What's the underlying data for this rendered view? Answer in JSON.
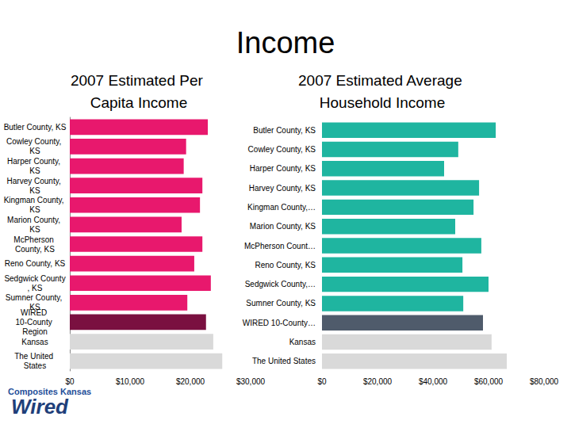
{
  "title": "Income",
  "logo": {
    "name": "Composites Kansas",
    "mark": "Wired"
  },
  "chart_data": [
    {
      "type": "bar",
      "orientation": "horizontal",
      "grid": false,
      "data_labels": false,
      "title": "2007 Estimated Per Capita Income",
      "categories": [
        "Butler County, KS",
        "Cowley County, KS",
        "Harper County, KS",
        "Harvey County, KS",
        "Kingman County, KS",
        "Marion County, KS",
        "McPherson County, KS",
        "Reno County, KS",
        "Sedgwick County, KS",
        "Sumner County, KS",
        "WIRED 10-County Region",
        "Kansas",
        "The United States"
      ],
      "values": [
        22900,
        19300,
        18900,
        22000,
        21600,
        18550,
        22000,
        20650,
        23400,
        19500,
        22600,
        23800,
        25300
      ],
      "colors": [
        "#e8186d",
        "#e8186d",
        "#e8186d",
        "#e8186d",
        "#e8186d",
        "#e8186d",
        "#e8186d",
        "#e8186d",
        "#e8186d",
        "#e8186d",
        "#7a1040",
        "#d9d9d9",
        "#d9d9d9"
      ],
      "xlim": [
        0,
        30000
      ],
      "xticks": [
        {
          "value": 0,
          "label": "$0"
        },
        {
          "value": 10000,
          "label": "$10,000"
        },
        {
          "value": 20000,
          "label": "$20,000"
        },
        {
          "value": 30000,
          "label": "$30,000"
        }
      ]
    },
    {
      "type": "bar",
      "orientation": "horizontal",
      "grid": false,
      "data_labels": false,
      "title": "2007 Estimated Average Household Income",
      "categories": [
        "Butler County, KS",
        "Cowley County, KS",
        "Harper County, KS",
        "Harvey County, KS",
        "Kingman County,…",
        "Marion County, KS",
        "McPherson Count…",
        "Reno County, KS",
        "Sedgwick County,…",
        "Sumner County, KS",
        "WIRED 10-County…",
        "Kansas",
        "The United States"
      ],
      "values": [
        62600,
        49100,
        44000,
        56600,
        54600,
        48000,
        57400,
        50600,
        60000,
        50900,
        58000,
        61100,
        66600
      ],
      "colors": [
        "#1fb5a0",
        "#1fb5a0",
        "#1fb5a0",
        "#1fb5a0",
        "#1fb5a0",
        "#1fb5a0",
        "#1fb5a0",
        "#1fb5a0",
        "#1fb5a0",
        "#1fb5a0",
        "#4f5b6b",
        "#d9d9d9",
        "#d9d9d9"
      ],
      "xlim": [
        0,
        80000
      ],
      "xticks": [
        {
          "value": 0,
          "label": "$0"
        },
        {
          "value": 20000,
          "label": "$20,000"
        },
        {
          "value": 40000,
          "label": "$40,000"
        },
        {
          "value": 60000,
          "label": "$60,000"
        },
        {
          "value": 80000,
          "label": "$80,000"
        }
      ]
    }
  ]
}
